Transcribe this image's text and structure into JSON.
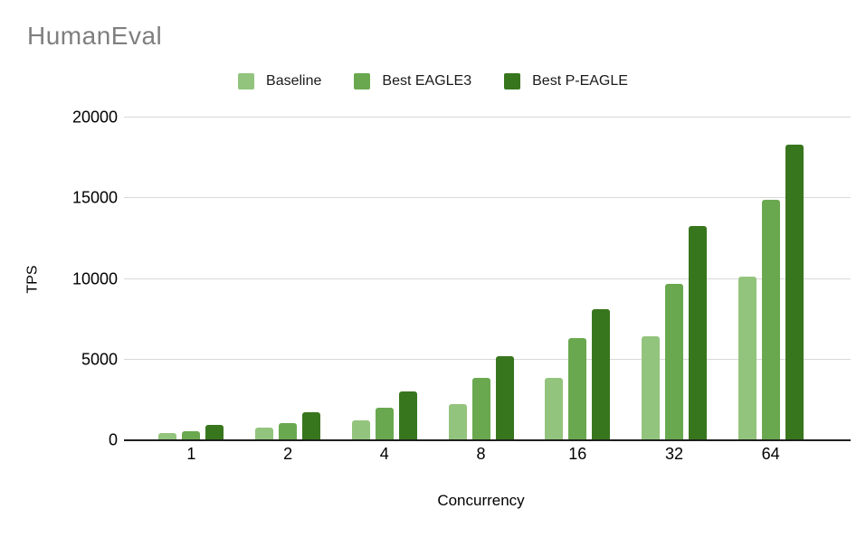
{
  "header": {
    "title": "HumanEval"
  },
  "chart_data": {
    "type": "bar",
    "title": "HumanEval",
    "categories": [
      "1",
      "2",
      "4",
      "8",
      "16",
      "32",
      "64"
    ],
    "series": [
      {
        "name": "Baseline",
        "color": "#93c47d",
        "values": [
          430,
          800,
          1210,
          2250,
          3880,
          6450,
          10150
        ]
      },
      {
        "name": "Best EAGLE3",
        "color": "#6aa84f",
        "values": [
          550,
          1080,
          2030,
          3870,
          6320,
          9670,
          14920
        ]
      },
      {
        "name": "Best P-EAGLE",
        "color": "#38761d",
        "values": [
          930,
          1760,
          3050,
          5220,
          8120,
          13270,
          18320
        ]
      }
    ],
    "xlabel": "Concurrency",
    "ylabel": "TPS",
    "ylim": [
      0,
      20000
    ],
    "ytick_values": [
      0,
      5000,
      10000,
      15000,
      20000
    ],
    "ytick_labels": [
      "0",
      "5000",
      "10000",
      "15000",
      "20000"
    ],
    "grid": true,
    "legend_position": "top",
    "colors": {
      "gridline": "#d9d9d9",
      "axis_line": "#1f1f1f",
      "title_text": "#7f7f7f",
      "tick_text": "#000000"
    }
  }
}
